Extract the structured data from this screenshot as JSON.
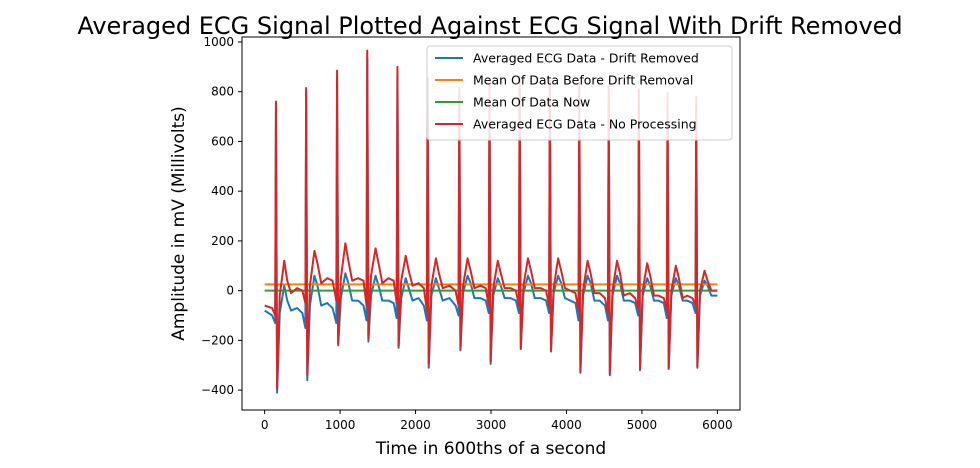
{
  "chart_data": {
    "type": "line",
    "title": "Averaged ECG Signal Plotted Against ECG Signal With Drift Removed",
    "xlabel": "Time in 600ths of a second",
    "ylabel": "Amplitude in mV (Millivolts)",
    "xlim": [
      -300,
      6300
    ],
    "ylim": [
      -480,
      1020
    ],
    "xticks": [
      0,
      1000,
      2000,
      3000,
      4000,
      5000,
      6000
    ],
    "yticks": [
      -400,
      -200,
      0,
      200,
      400,
      600,
      800,
      1000
    ],
    "legend_position": "top-right",
    "beat_positions": [
      150,
      550,
      960,
      1360,
      1760,
      2160,
      2580,
      2980,
      3380,
      3780,
      4170,
      4560,
      4960,
      5340,
      5720
    ],
    "beat_peaks_raw": [
      760,
      815,
      885,
      965,
      900,
      855,
      815,
      830,
      860,
      845,
      835,
      825,
      810,
      795,
      780
    ],
    "beat_troughs_raw": [
      -400,
      -345,
      -235,
      -215,
      -220,
      -300,
      -240,
      -290,
      -230,
      -240,
      -330,
      -335,
      -320,
      -315,
      -310
    ],
    "series": [
      {
        "name": "Averaged ECG Data - Drift Removed",
        "color": "#1f77b4",
        "x": [
          0,
          100,
          140,
          150,
          165,
          200,
          260,
          300,
          350,
          430,
          500,
          540,
          550,
          565,
          600,
          660,
          700,
          750,
          830,
          900,
          950,
          960,
          975,
          1010,
          1070,
          1110,
          1160,
          1240,
          1310,
          1350,
          1360,
          1375,
          1410,
          1470,
          1510,
          1560,
          1640,
          1710,
          1750,
          1760,
          1775,
          1810,
          1870,
          1910,
          1960,
          2040,
          2110,
          2150,
          2160,
          2175,
          2210,
          2270,
          2310,
          2360,
          2450,
          2530,
          2570,
          2580,
          2595,
          2630,
          2690,
          2730,
          2780,
          2860,
          2930,
          2970,
          2980,
          2995,
          3030,
          3090,
          3130,
          3180,
          3260,
          3330,
          3370,
          3380,
          3395,
          3430,
          3490,
          3530,
          3580,
          3660,
          3730,
          3770,
          3780,
          3795,
          3830,
          3890,
          3930,
          3980,
          4050,
          4120,
          4160,
          4170,
          4185,
          4220,
          4280,
          4320,
          4370,
          4440,
          4510,
          4550,
          4560,
          4575,
          4610,
          4670,
          4710,
          4760,
          4840,
          4910,
          4950,
          4960,
          4975,
          5010,
          5070,
          5110,
          5160,
          5220,
          5290,
          5330,
          5340,
          5355,
          5390,
          5450,
          5490,
          5540,
          5600,
          5670,
          5710,
          5720,
          5735,
          5770,
          5830,
          5870,
          5920,
          6000
        ],
        "y": [
          -80,
          -100,
          -130,
          740,
          -410,
          -90,
          20,
          -40,
          -80,
          -70,
          -90,
          -150,
          795,
          -360,
          -60,
          60,
          20,
          -60,
          -50,
          -70,
          -130,
          860,
          -220,
          -30,
          70,
          30,
          -40,
          -40,
          -60,
          -120,
          935,
          -205,
          -20,
          60,
          20,
          -40,
          -40,
          -50,
          -110,
          870,
          -230,
          -30,
          50,
          10,
          -40,
          -30,
          -60,
          -120,
          825,
          -310,
          -20,
          50,
          10,
          -40,
          -30,
          -60,
          -100,
          790,
          -240,
          -10,
          60,
          30,
          -30,
          -30,
          -40,
          -90,
          800,
          -295,
          -20,
          50,
          20,
          -30,
          -30,
          -40,
          -90,
          830,
          -235,
          -10,
          60,
          30,
          -30,
          -30,
          -40,
          -90,
          815,
          -245,
          -10,
          60,
          30,
          -30,
          -40,
          -50,
          -120,
          800,
          -330,
          -20,
          60,
          30,
          -40,
          -40,
          -60,
          -120,
          795,
          -340,
          -20,
          60,
          30,
          -40,
          -40,
          -50,
          -100,
          780,
          -320,
          -20,
          50,
          20,
          -40,
          -40,
          -50,
          -110,
          765,
          -315,
          -20,
          50,
          20,
          -40,
          -40,
          -50,
          -90,
          750,
          -310,
          -20,
          40,
          20,
          -20,
          -20
        ]
      },
      {
        "name": "Mean Of Data Before Drift Removal",
        "color": "#ff7f0e",
        "x": [
          0,
          6000
        ],
        "y": [
          25,
          25
        ]
      },
      {
        "name": "Mean Of Data Now",
        "color": "#2ca02c",
        "x": [
          0,
          6000
        ],
        "y": [
          0,
          0
        ]
      },
      {
        "name": "Averaged ECG Data - No Processing",
        "color": "#d62728",
        "x": [
          0,
          100,
          140,
          150,
          165,
          200,
          260,
          300,
          350,
          430,
          500,
          540,
          550,
          565,
          600,
          660,
          700,
          750,
          830,
          900,
          950,
          960,
          975,
          1010,
          1070,
          1110,
          1160,
          1240,
          1310,
          1350,
          1360,
          1375,
          1410,
          1470,
          1510,
          1560,
          1640,
          1710,
          1750,
          1760,
          1775,
          1810,
          1870,
          1910,
          1960,
          2040,
          2110,
          2150,
          2160,
          2175,
          2210,
          2270,
          2310,
          2360,
          2450,
          2530,
          2570,
          2580,
          2595,
          2630,
          2690,
          2730,
          2780,
          2860,
          2930,
          2970,
          2980,
          2995,
          3030,
          3090,
          3130,
          3180,
          3260,
          3330,
          3370,
          3380,
          3395,
          3430,
          3490,
          3530,
          3580,
          3660,
          3730,
          3770,
          3780,
          3795,
          3830,
          3890,
          3930,
          3980,
          4050,
          4120,
          4160,
          4170,
          4185,
          4220,
          4280,
          4320,
          4370,
          4440,
          4510,
          4550,
          4560,
          4575,
          4610,
          4670,
          4710,
          4760,
          4840,
          4910,
          4950,
          4960,
          4975,
          5010,
          5070,
          5110,
          5160,
          5220,
          5290,
          5330,
          5340,
          5355,
          5390,
          5450,
          5490,
          5540,
          5600,
          5670,
          5710,
          5720,
          5735,
          5770,
          5830,
          5870,
          5920,
          6000
        ],
        "y": [
          -60,
          -70,
          -100,
          760,
          -395,
          -20,
          120,
          40,
          -10,
          10,
          0,
          -50,
          815,
          -340,
          20,
          160,
          110,
          30,
          50,
          40,
          -40,
          885,
          -215,
          50,
          190,
          120,
          40,
          50,
          40,
          -60,
          965,
          -195,
          60,
          170,
          110,
          30,
          50,
          40,
          -50,
          900,
          -220,
          40,
          140,
          80,
          20,
          30,
          10,
          -80,
          855,
          -295,
          20,
          130,
          70,
          10,
          20,
          0,
          -60,
          815,
          -235,
          20,
          130,
          80,
          10,
          20,
          10,
          -60,
          830,
          -285,
          10,
          120,
          70,
          10,
          10,
          0,
          -60,
          860,
          -230,
          20,
          130,
          80,
          10,
          10,
          0,
          -60,
          845,
          -240,
          10,
          130,
          80,
          10,
          0,
          -10,
          -80,
          835,
          -325,
          0,
          120,
          70,
          -10,
          -10,
          -30,
          -90,
          825,
          -335,
          0,
          120,
          70,
          -20,
          -10,
          -30,
          -70,
          810,
          -315,
          0,
          110,
          60,
          -20,
          -20,
          -30,
          -80,
          795,
          -310,
          0,
          100,
          50,
          -30,
          -20,
          -30,
          -60,
          780,
          -305,
          0,
          80,
          40,
          0,
          0
        ]
      }
    ]
  }
}
